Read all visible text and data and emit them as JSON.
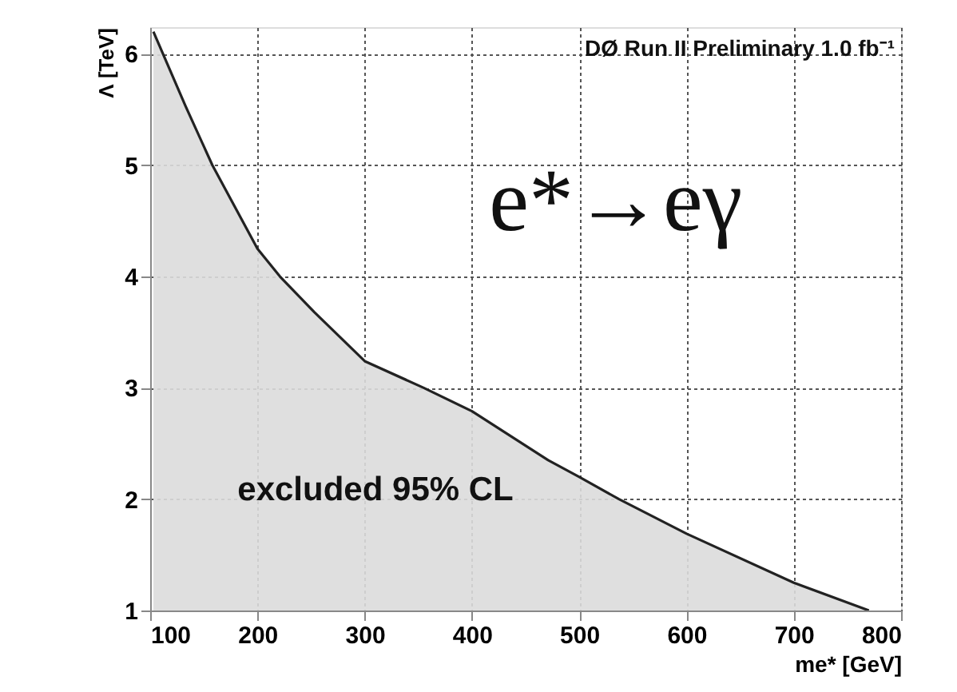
{
  "chart_data": {
    "type": "area",
    "xlabel": "me* [GeV]",
    "ylabel": "Λ [TeV]",
    "x": [
      103,
      133,
      158,
      200,
      221,
      253,
      300,
      355,
      400,
      471,
      500,
      537,
      600,
      700,
      770
    ],
    "series": [
      {
        "color": "#222222",
        "values": [
          6.2,
          5.53,
          5.0,
          4.25,
          4.0,
          3.68,
          3.24,
          3.0,
          2.79,
          2.35,
          2.2,
          2.0,
          1.69,
          1.25,
          1.0
        ]
      }
    ],
    "xlim": [
      100,
      800
    ],
    "ylim": [
      1,
      6.24
    ],
    "xticks": [
      100,
      200,
      300,
      400,
      500,
      600,
      700,
      800
    ],
    "yticks": [
      1,
      2,
      3,
      4,
      5,
      6
    ],
    "grid": true,
    "annotations": [
      "DØ Run II Preliminary 1.0 fb⁻¹",
      "e*→eγ",
      "excluded 95% CL"
    ]
  }
}
